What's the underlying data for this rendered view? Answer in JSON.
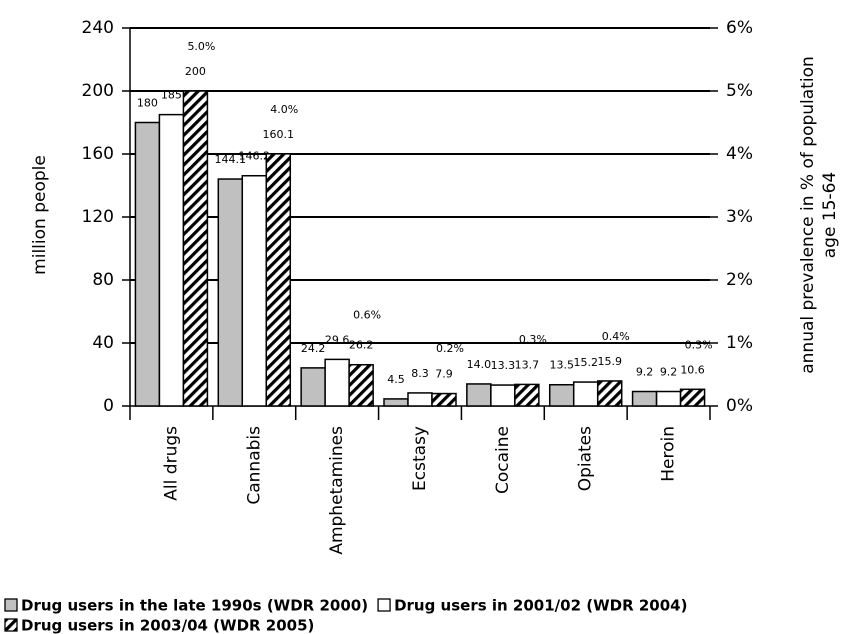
{
  "chart_data": {
    "type": "bar",
    "ylabel": "million people",
    "y2label": [
      "annual prevalence in % of population",
      "age 15-64"
    ],
    "categories": [
      "All drugs",
      "Cannabis",
      "Amphetamines",
      "Ecstasy",
      "Cocaine",
      "Opiates",
      "Heroin"
    ],
    "series": [
      {
        "name": "Drug users in the late 1990s (WDR 2000)",
        "color": "#c0c0c0",
        "values": [
          180,
          144.1,
          24.2,
          4.5,
          14.0,
          13.5,
          9.2
        ],
        "value_labels": [
          "180",
          "144.1",
          "24.2",
          "4.5",
          "14.0",
          "13.5",
          "9.2"
        ]
      },
      {
        "name": "Drug users in 2001/02 (WDR 2004)",
        "color": "#ffffff",
        "values": [
          185,
          146.2,
          29.6,
          8.3,
          13.3,
          15.2,
          9.2
        ]
      },
      {
        "name": "Drug users in 2003/04 (WDR 2005)",
        "color": "hatch",
        "values": [
          200,
          160.1,
          26.2,
          7.9,
          13.7,
          15.9,
          10.6
        ]
      }
    ],
    "prevalence": {
      "axis": "y2",
      "values": [
        5.0,
        4.0,
        0.6,
        0.2,
        0.3,
        0.4,
        0.3
      ],
      "value_labels": [
        "5.0%",
        "4.0%",
        "0.6%",
        "0.2%",
        "0.3%",
        "0.4%",
        "0.3%"
      ]
    },
    "ylim": [
      0,
      240
    ],
    "yticks": [
      0,
      40,
      80,
      120,
      160,
      200,
      240
    ],
    "y2lim": [
      0,
      6
    ],
    "y2ticks": [
      {
        "value": 0,
        "label": "0%"
      },
      {
        "value": 1,
        "label": "1%"
      },
      {
        "value": 2,
        "label": "2%"
      },
      {
        "value": 3,
        "label": "3%"
      },
      {
        "value": 4,
        "label": "4%"
      },
      {
        "value": 5,
        "label": "5%"
      },
      {
        "value": 6,
        "label": "6%"
      }
    ],
    "grid": true,
    "legend": "bottom"
  }
}
